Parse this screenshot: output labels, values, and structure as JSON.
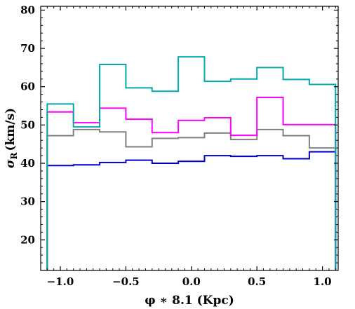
{
  "chart_data": {
    "type": "line",
    "step": true,
    "title": "",
    "xlabel": "φ ∗ 8.1 (Kpc)",
    "ylabel_symbol": "σ",
    "ylabel_subscript": "R",
    "ylabel_rest": "(km/s)",
    "xlim": [
      -1.15,
      1.12
    ],
    "ylim": [
      12,
      81
    ],
    "xticks": [
      -1.0,
      -0.5,
      0.0,
      0.5,
      1.0
    ],
    "xtick_labels": [
      "−1.0",
      "−0.5",
      "0.0",
      "0.5",
      "1.0"
    ],
    "yticks": [
      20,
      30,
      40,
      50,
      60,
      70,
      80
    ],
    "ytick_labels": [
      "20",
      "30",
      "40",
      "50",
      "60",
      "70",
      "80"
    ],
    "grid": false,
    "bin_edges": [
      -1.1,
      -0.9,
      -0.7,
      -0.5,
      -0.3,
      -0.1,
      0.1,
      0.3,
      0.5,
      0.7,
      0.9,
      1.1
    ],
    "series": [
      {
        "color": "#00aaaa",
        "values": [
          55.5,
          49.5,
          65.8,
          59.7,
          58.8,
          67.8,
          61.4,
          62.0,
          65.0,
          61.9,
          60.6
        ]
      },
      {
        "color": "#ff00ff",
        "values": [
          53.4,
          50.6,
          54.4,
          51.5,
          48.0,
          51.2,
          51.9,
          47.3,
          57.2,
          50.1,
          50.1
        ]
      },
      {
        "color": "#808080",
        "values": [
          47.2,
          48.8,
          48.2,
          44.3,
          46.5,
          46.7,
          47.9,
          46.2,
          48.8,
          47.2,
          44.0
        ]
      },
      {
        "color": "#0000cc",
        "values": [
          39.4,
          39.6,
          40.2,
          40.8,
          40.0,
          40.5,
          42.0,
          41.8,
          42.0,
          41.2,
          43.0
        ]
      }
    ]
  }
}
